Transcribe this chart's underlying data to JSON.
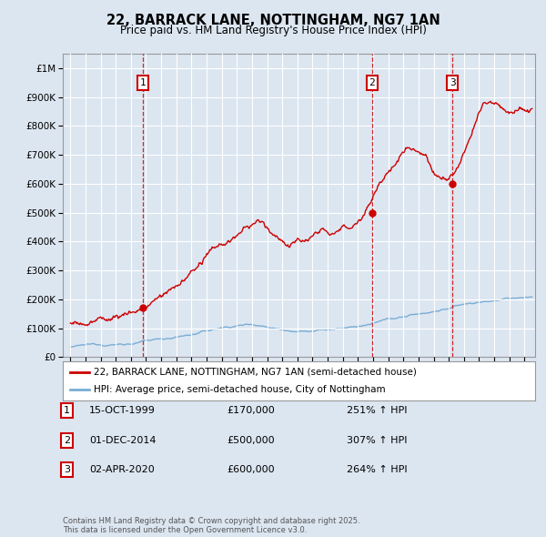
{
  "title": "22, BARRACK LANE, NOTTINGHAM, NG7 1AN",
  "subtitle": "Price paid vs. HM Land Registry's House Price Index (HPI)",
  "background_color": "#dce6f1",
  "plot_bg_color": "#dce6f1",
  "red_line_color": "#cc0000",
  "blue_line_color": "#7aadd4",
  "grid_color": "#ffffff",
  "marker_dates": [
    1999.79,
    2014.92,
    2020.25
  ],
  "marker_labels": [
    "1",
    "2",
    "3"
  ],
  "marker_values_red": [
    170000,
    500000,
    600000
  ],
  "legend_entries": [
    "22, BARRACK LANE, NOTTINGHAM, NG7 1AN (semi-detached house)",
    "HPI: Average price, semi-detached house, City of Nottingham"
  ],
  "table_rows": [
    [
      "1",
      "15-OCT-1999",
      "£170,000",
      "251% ↑ HPI"
    ],
    [
      "2",
      "01-DEC-2014",
      "£500,000",
      "307% ↑ HPI"
    ],
    [
      "3",
      "02-APR-2020",
      "£600,000",
      "264% ↑ HPI"
    ]
  ],
  "footer": "Contains HM Land Registry data © Crown copyright and database right 2025.\nThis data is licensed under the Open Government Licence v3.0.",
  "ylim": [
    0,
    1050000
  ],
  "xlim_start": 1994.5,
  "xlim_end": 2025.7
}
